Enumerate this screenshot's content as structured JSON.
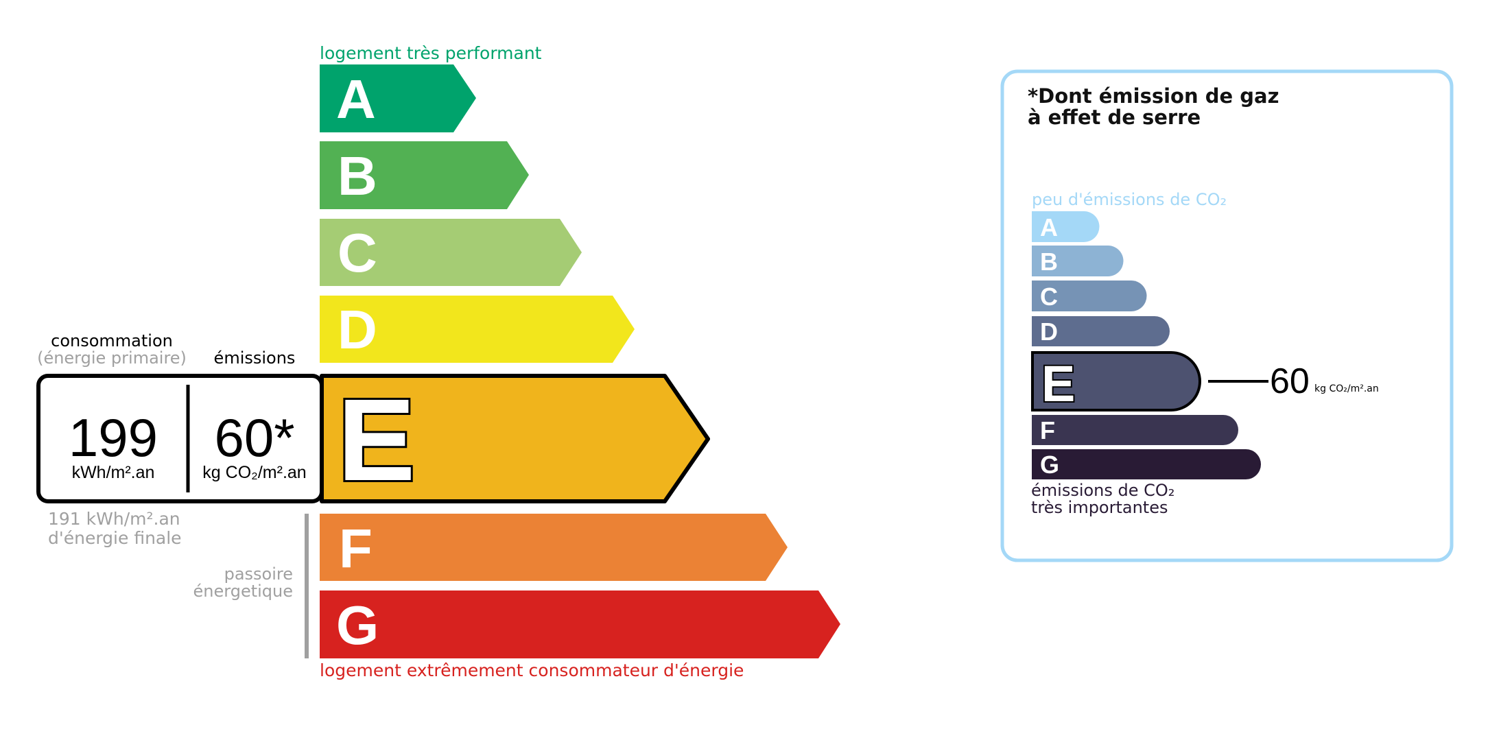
{
  "energy_label": {
    "top_caption": "logement très performant",
    "bottom_caption": "logement extrêmement consommateur d'énergie",
    "classes": [
      {
        "letter": "A",
        "color": "#00a36c"
      },
      {
        "letter": "B",
        "color": "#52b153"
      },
      {
        "letter": "C",
        "color": "#a5cc74"
      },
      {
        "letter": "D",
        "color": "#f2e61c"
      },
      {
        "letter": "E",
        "color": "#f0b41c"
      },
      {
        "letter": "F",
        "color": "#eb8235"
      },
      {
        "letter": "G",
        "color": "#d7221f"
      }
    ],
    "current_class": "E",
    "consumption_label": "consommation",
    "consumption_sublabel": "(énergie primaire)",
    "emissions_label": "émissions",
    "consumption_value": "199",
    "consumption_unit": "kWh/m².an",
    "emissions_value": "60*",
    "emissions_unit": "kg CO₂/m².an",
    "final_energy_line1": "191 kWh/m².an",
    "final_energy_line2": "d'énergie finale",
    "passoire_line1": "passoire",
    "passoire_line2": "énergetique",
    "top_caption_color": "#00a36c",
    "bottom_caption_color": "#d7221f"
  },
  "ges_panel": {
    "title_line1": "*Dont émission de gaz",
    "title_line2": "à effet de serre",
    "top_caption": "peu d'émissions de CO₂",
    "bottom_caption_line1": "émissions de CO₂",
    "bottom_caption_line2": "très importantes",
    "classes": [
      {
        "letter": "A",
        "color": "#a4d8f7"
      },
      {
        "letter": "B",
        "color": "#8db3d4"
      },
      {
        "letter": "C",
        "color": "#7693b5"
      },
      {
        "letter": "D",
        "color": "#5e6d8f"
      },
      {
        "letter": "E",
        "color": "#4d5270"
      },
      {
        "letter": "F",
        "color": "#3a3551"
      },
      {
        "letter": "G",
        "color": "#291b35"
      }
    ],
    "current_class": "E",
    "value": "60",
    "unit": "kg CO₂/m².an",
    "border_color": "#a4d8f7"
  }
}
